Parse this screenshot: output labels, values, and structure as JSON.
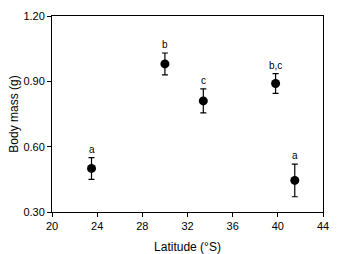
{
  "chart_data": {
    "type": "scatter",
    "x_label": "Latitude (°S)",
    "y_label": "Body mass (g)",
    "x": [
      23.5,
      30.0,
      33.4,
      39.8,
      41.5
    ],
    "values": [
      0.5,
      0.98,
      0.81,
      0.89,
      0.445
    ],
    "errors": [
      0.05,
      0.05,
      0.055,
      0.045,
      0.075
    ],
    "annotations": [
      "a",
      "b",
      "c",
      "b,c",
      "a"
    ],
    "color": "#000000",
    "marker": "circle",
    "xlim": [
      20,
      44
    ],
    "xticks": [
      20,
      24,
      28,
      32,
      36,
      40,
      44
    ],
    "ylim": [
      0.3,
      1.2
    ],
    "yticks": [
      {
        "value": 0.3,
        "label": "0.30"
      },
      {
        "value": 0.6,
        "label": "0.60"
      },
      {
        "value": 0.9,
        "label": "0.90"
      },
      {
        "value": 1.2,
        "label": "1.20"
      }
    ],
    "grid": false
  }
}
